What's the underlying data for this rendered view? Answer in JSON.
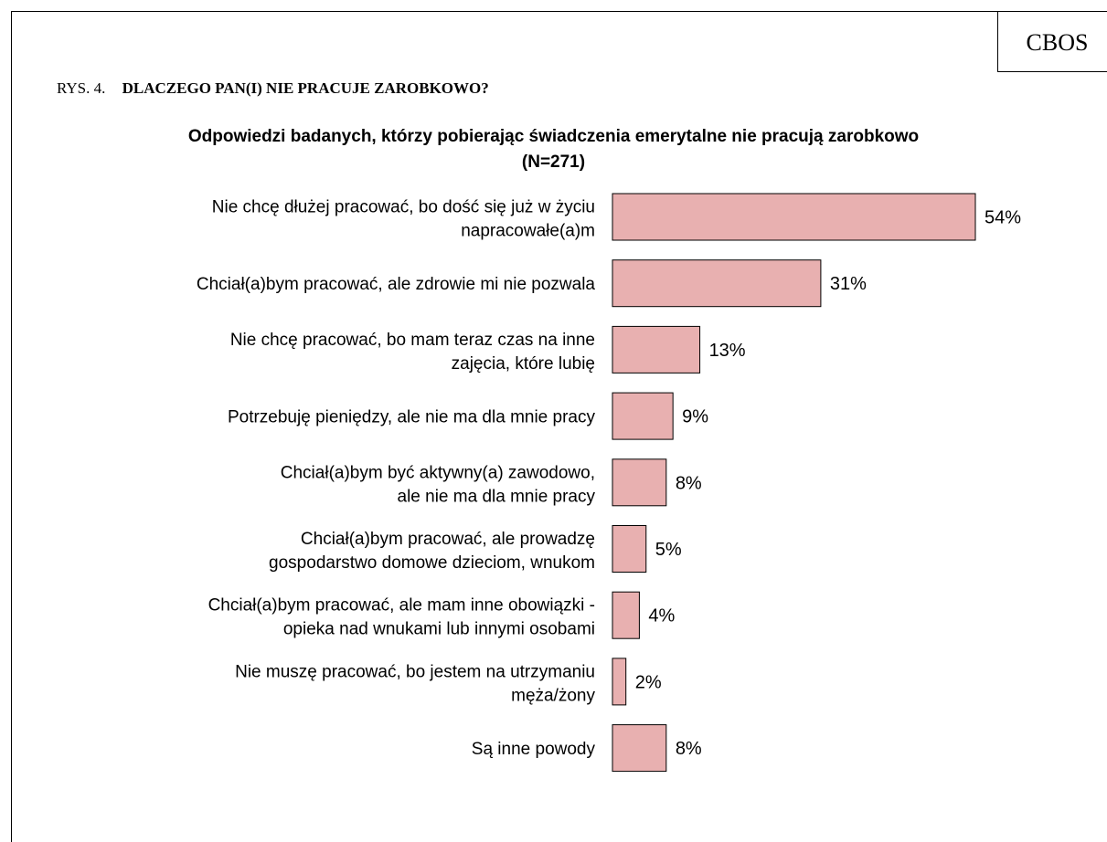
{
  "header": {
    "source_label": "CBOS",
    "figure_number": "RYS. 4.",
    "figure_title": "DLACZEGO PAN(I) NIE PRACUJE ZAROBKOWO?"
  },
  "chart_data": {
    "type": "bar",
    "orientation": "horizontal",
    "title": "Odpowiedzi badanych, którzy pobierając świadczenia emerytalne nie pracują zarobkowo",
    "subtitle": "(N=271)",
    "xlabel": "",
    "ylabel": "",
    "xlim": [
      0,
      54
    ],
    "grid": false,
    "legend": "none",
    "bar_color": "#e8b0b0",
    "bar_stroke": "#000000",
    "categories": [
      [
        "Nie chcę dłużej pracować, bo dość się już w życiu",
        "napracowałe(a)m"
      ],
      [
        "Chciał(a)bym pracować, ale zdrowie mi nie pozwala"
      ],
      [
        "Nie chcę pracować, bo mam teraz czas na inne",
        "zajęcia, które lubię"
      ],
      [
        "Potrzebuję pieniędzy, ale nie ma dla mnie pracy"
      ],
      [
        "Chciał(a)bym być aktywny(a) zawodowo,",
        "ale nie ma dla mnie pracy"
      ],
      [
        "Chciał(a)bym pracować, ale prowadzę",
        "gospodarstwo domowe dzieciom, wnukom"
      ],
      [
        "Chciał(a)bym pracować, ale mam inne obowiązki -",
        "opieka nad wnukami lub innymi osobami"
      ],
      [
        "Nie muszę pracować, bo jestem na utrzymaniu",
        "męża/żony"
      ],
      [
        "Są inne powody"
      ]
    ],
    "values": [
      54,
      31,
      13,
      9,
      8,
      5,
      4,
      2,
      8
    ],
    "value_labels": [
      "54%",
      "31%",
      "13%",
      "9%",
      "8%",
      "5%",
      "4%",
      "2%",
      "8%"
    ]
  }
}
